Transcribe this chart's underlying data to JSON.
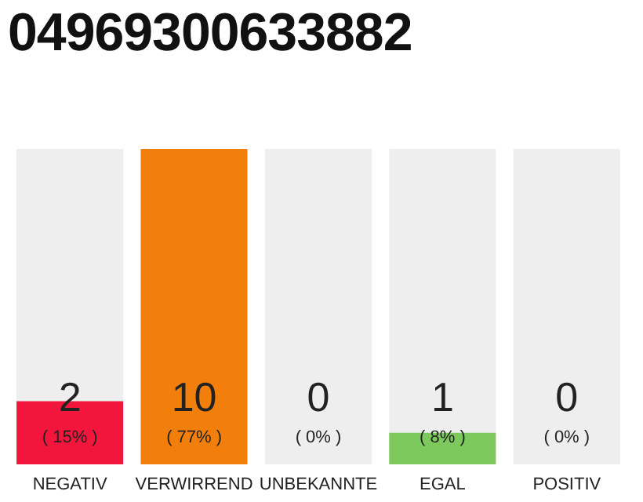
{
  "chart_data": {
    "type": "bar",
    "title": "04969300633882",
    "categories": [
      "NEGATIV",
      "VERWIRREND",
      "UNBEKANNTE",
      "EGAL",
      "POSITIV"
    ],
    "values": [
      2,
      10,
      0,
      1,
      0
    ],
    "colors": [
      "#f2163c",
      "#f27f0c",
      "#cccccc",
      "#7dc95e",
      "#cccccc"
    ],
    "data_labels": true,
    "bands": [
      {
        "axis": "x",
        "from": "NEGATIV",
        "to": "NEGATIV",
        "color": "#eeeeee"
      },
      {
        "axis": "x",
        "from": "UNBEKANNTE",
        "to": "UNBEKANNTE",
        "color": "#eeeeee"
      },
      {
        "axis": "x",
        "from": "EGAL",
        "to": "EGAL",
        "color": "#eeeeee"
      },
      {
        "axis": "x",
        "from": "POSITIV",
        "to": "POSITIV",
        "color": "#eeeeee"
      }
    ],
    "annotations": [
      "( 15% )",
      "( 77% )",
      "( 0% )",
      "( 8% )",
      "( 0% )"
    ]
  }
}
